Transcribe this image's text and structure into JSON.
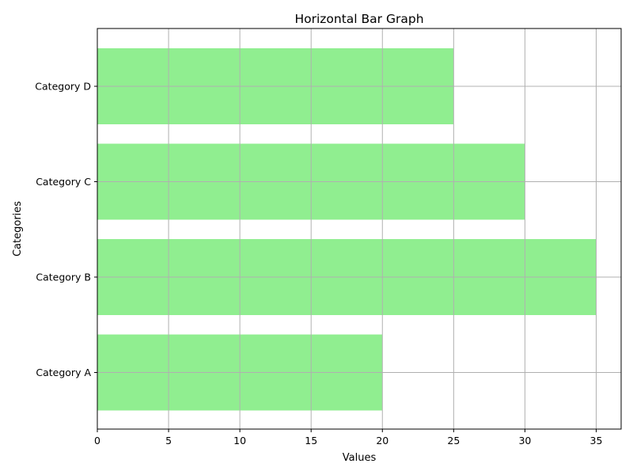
{
  "chart_data": {
    "type": "bar",
    "orientation": "horizontal",
    "title": "Horizontal Bar Graph",
    "xlabel": "Values",
    "ylabel": "Categories",
    "categories": [
      "Category A",
      "Category B",
      "Category C",
      "Category D"
    ],
    "values": [
      20,
      35,
      30,
      25
    ],
    "xlim": [
      0,
      36.75
    ],
    "xticks": [
      0,
      5,
      10,
      15,
      20,
      25,
      30,
      35
    ],
    "grid": true,
    "bar_color": "#90ee90",
    "grid_color": "#b0b0b0"
  }
}
